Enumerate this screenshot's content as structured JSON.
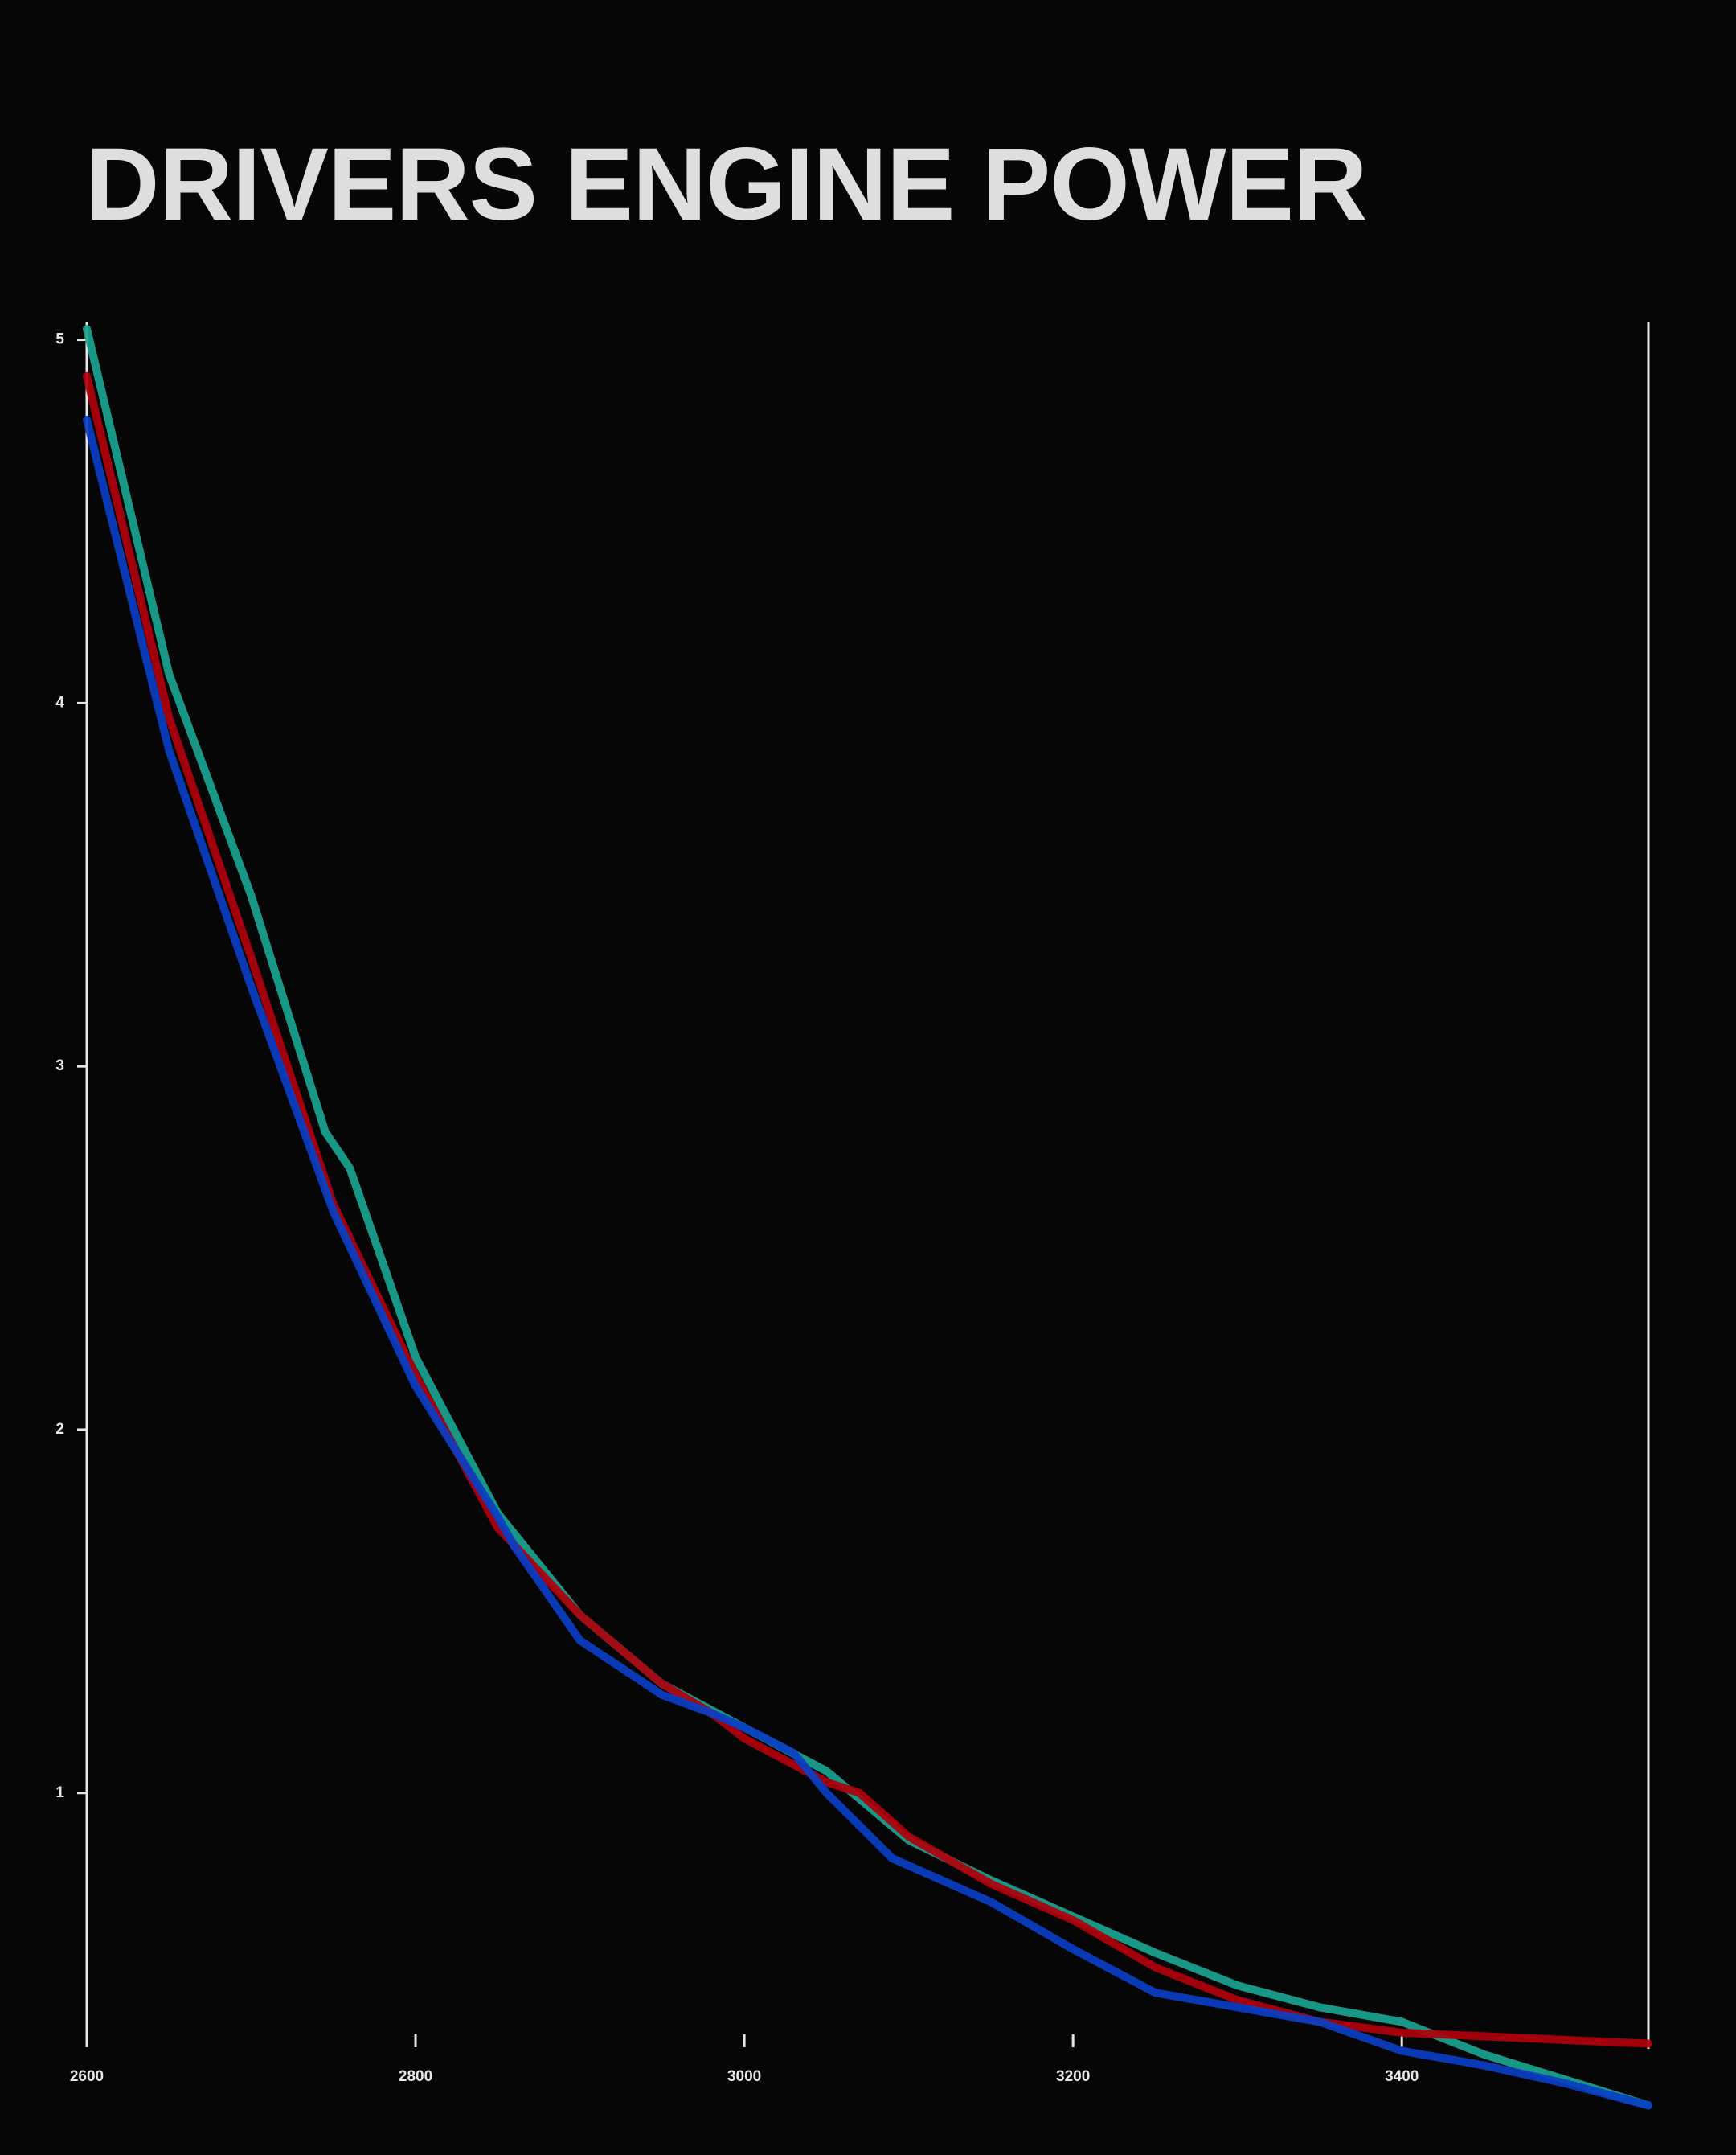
{
  "chart_data": {
    "type": "line",
    "title": "DRIVERS ENGINE POWER",
    "xlabel": "",
    "ylabel": "",
    "xlim": [
      2600,
      3550
    ],
    "ylim": [
      0.3,
      5.05
    ],
    "x_ticks": [
      2600,
      2800,
      3000,
      3200,
      3400
    ],
    "y_ticks": [
      1,
      2,
      3,
      4,
      5
    ],
    "grid": false,
    "legend": "none",
    "series": [
      {
        "color": "#1aa391",
        "x": [
          2600,
          2650,
          2700,
          2745,
          2760,
          2800,
          2850,
          2900,
          2950,
          3000,
          3050,
          3100,
          3150,
          3200,
          3250,
          3300,
          3350,
          3400,
          3450,
          3500,
          3550
        ],
        "y": [
          5.03,
          4.08,
          3.47,
          2.82,
          2.72,
          2.2,
          1.77,
          1.49,
          1.3,
          1.18,
          1.06,
          0.87,
          0.76,
          0.66,
          0.56,
          0.47,
          0.41,
          0.37,
          0.28,
          0.21,
          0.14
        ]
      },
      {
        "color": "#b0000c",
        "x": [
          2600,
          2650,
          2700,
          2750,
          2800,
          2850,
          2900,
          2950,
          2980,
          3000,
          3050,
          3070,
          3100,
          3150,
          3200,
          3250,
          3300,
          3350,
          3400,
          3450,
          3500,
          3550
        ],
        "y": [
          4.9,
          3.96,
          3.3,
          2.62,
          2.15,
          1.73,
          1.49,
          1.3,
          1.22,
          1.15,
          1.03,
          1.0,
          0.88,
          0.75,
          0.65,
          0.52,
          0.43,
          0.37,
          0.34,
          0.33,
          0.32,
          0.31
        ]
      },
      {
        "color": "#0a3ec4",
        "x": [
          2600,
          2650,
          2700,
          2750,
          2800,
          2850,
          2860,
          2900,
          2950,
          2980,
          3000,
          3030,
          3050,
          3090,
          3150,
          3200,
          3250,
          3300,
          3350,
          3400,
          3450,
          3500,
          3550
        ],
        "y": [
          4.78,
          3.87,
          3.22,
          2.6,
          2.12,
          1.76,
          1.68,
          1.42,
          1.27,
          1.22,
          1.18,
          1.11,
          1.0,
          0.82,
          0.7,
          0.57,
          0.45,
          0.41,
          0.37,
          0.29,
          0.25,
          0.2,
          0.14
        ]
      }
    ]
  }
}
